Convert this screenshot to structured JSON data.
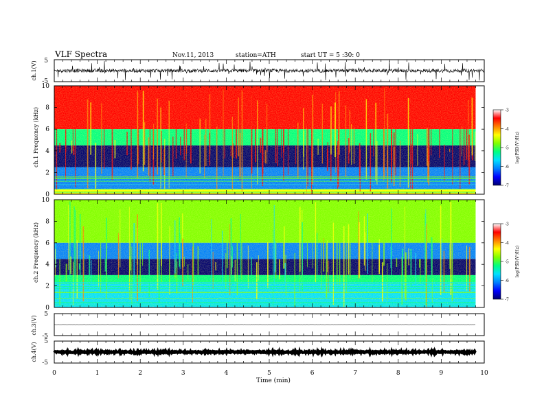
{
  "header": {
    "title": "VLF  Spectra",
    "date": "Nov.11, 2013",
    "station": "station=ATH",
    "start": "start  UT  =   5  :30: 0"
  },
  "colorbar": {
    "label": "log(PSD(V²/Hz)",
    "ticks": [
      "-3",
      "-4",
      "-5",
      "-6",
      "-7"
    ],
    "colors": [
      "#000070",
      "#0000ff",
      "#0080ff",
      "#00e0ff",
      "#00ff80",
      "#80ff00",
      "#ffff00",
      "#ff8000",
      "#ff0000",
      "#ffffff"
    ]
  },
  "chart_data": [
    {
      "type": "line",
      "panel": "ch1-waveform",
      "ylabel": "ch.1(V)",
      "ytick_labels": [
        "5",
        "-5"
      ],
      "ylim": [
        -5,
        5
      ],
      "xlim": [
        0,
        10
      ],
      "description_values": {
        "baseline": 0,
        "noise_amplitude": 0.8
      }
    },
    {
      "type": "heatmap",
      "panel": "ch1-spectrogram",
      "ylabel": "ch.1 Frequency  (kHz)",
      "ylim": [
        0,
        10
      ],
      "yticks": [
        "10",
        "8",
        "6",
        "4",
        "2",
        "0"
      ],
      "xlim": [
        0,
        9.8
      ],
      "clim": [
        -7,
        -3
      ],
      "bands_khz": [
        {
          "range": [
            6,
            10
          ],
          "level": -3.4
        },
        {
          "range": [
            4.5,
            6
          ],
          "level": -5.0
        },
        {
          "range": [
            2.5,
            4.5
          ],
          "level": -6.6
        },
        {
          "range": [
            0.5,
            2.5
          ],
          "level": -5.8
        },
        {
          "range": [
            0,
            0.5
          ],
          "level": -4.2
        }
      ]
    },
    {
      "type": "heatmap",
      "panel": "ch2-spectrogram",
      "ylabel": "ch.2 Frequency  (kHz)",
      "ylim": [
        0,
        10
      ],
      "yticks": [
        "10",
        "8",
        "6",
        "4",
        "2",
        "0"
      ],
      "xlim": [
        0,
        9.8
      ],
      "clim": [
        -7,
        -3
      ],
      "bands_khz": [
        {
          "range": [
            6,
            10
          ],
          "level": -4.6
        },
        {
          "range": [
            4.5,
            6
          ],
          "level": -5.8
        },
        {
          "range": [
            3,
            4.5
          ],
          "level": -6.7
        },
        {
          "range": [
            2.2,
            3
          ],
          "level": -5.2
        },
        {
          "range": [
            0,
            2.2
          ],
          "level": -5.4
        }
      ]
    },
    {
      "type": "line",
      "panel": "ch3-waveform",
      "ylabel": "ch.3(V)",
      "ytick_labels": [
        "5",
        "-5"
      ],
      "ylim": [
        -5,
        5
      ],
      "xlim": [
        0,
        9.8
      ],
      "description_values": {
        "baseline": 0,
        "noise_amplitude": 0.05
      }
    },
    {
      "type": "line",
      "panel": "ch4-waveform",
      "ylabel": "ch.4(V)",
      "ytick_labels": [
        "5",
        "-5"
      ],
      "ylim": [
        -5,
        5
      ],
      "xlim": [
        0,
        9.8
      ],
      "description_values": {
        "baseline": 0,
        "noise_amplitude": 0.3
      }
    }
  ],
  "xaxis": {
    "label": "Time  (min)",
    "ticks": [
      "0",
      "1",
      "2",
      "3",
      "4",
      "5",
      "6",
      "7",
      "8",
      "9",
      "10"
    ]
  }
}
